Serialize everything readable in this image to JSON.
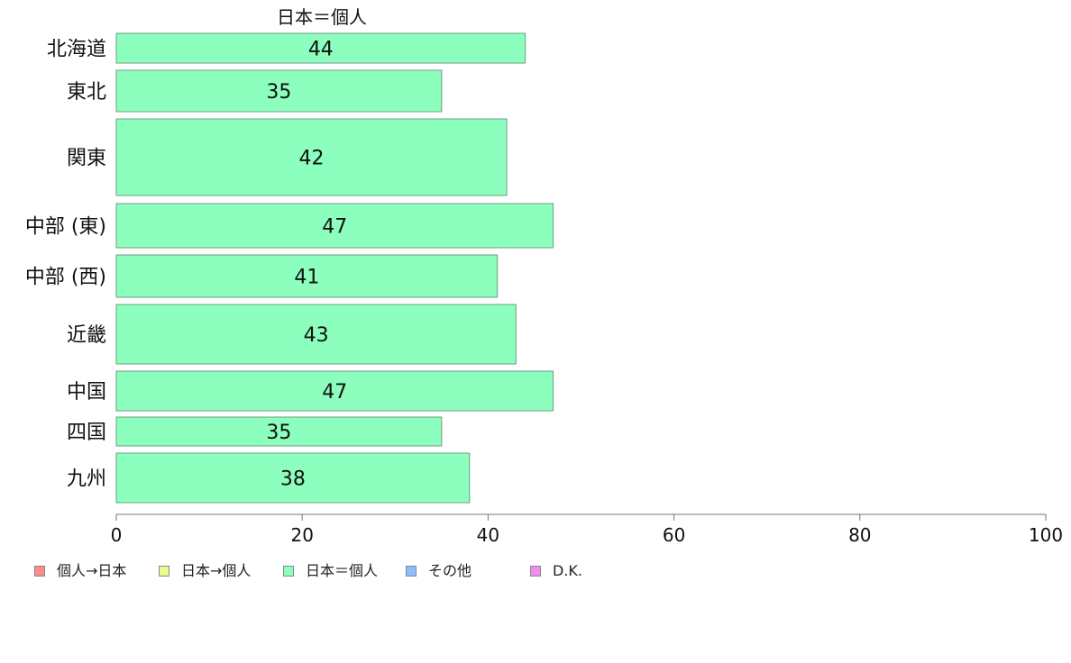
{
  "chart_data": {
    "type": "bar",
    "orientation": "horizontal",
    "title": "日本＝個人",
    "categories": [
      "北海道",
      "東北",
      "関東",
      "中部 (東)",
      "中部 (西)",
      "近畿",
      "中国",
      "四国",
      "九州"
    ],
    "series": [
      {
        "name": "日本＝個人",
        "color": "#8cffbe",
        "values": [
          44,
          35,
          42,
          47,
          41,
          43,
          47,
          35,
          38
        ]
      }
    ],
    "data_labels": [
      "44",
      "35",
      "42",
      "47",
      "41",
      "43",
      "47",
      "35",
      "38"
    ],
    "xlim": [
      0,
      100
    ],
    "xticks": [
      0,
      20,
      40,
      60,
      80,
      100
    ],
    "xtick_labels": [
      "0",
      "20",
      "40",
      "60",
      "80",
      "100"
    ],
    "grid": false,
    "legend_position": "bottom-left",
    "legend": [
      {
        "label": "個人→日本",
        "color": "#ff8c8c"
      },
      {
        "label": "日本→個人",
        "color": "#e6ff8c"
      },
      {
        "label": "日本＝個人",
        "color": "#8cffbe"
      },
      {
        "label": "その他",
        "color": "#8cbeff"
      },
      {
        "label": "D.K.",
        "color": "#f08cf0"
      }
    ]
  }
}
